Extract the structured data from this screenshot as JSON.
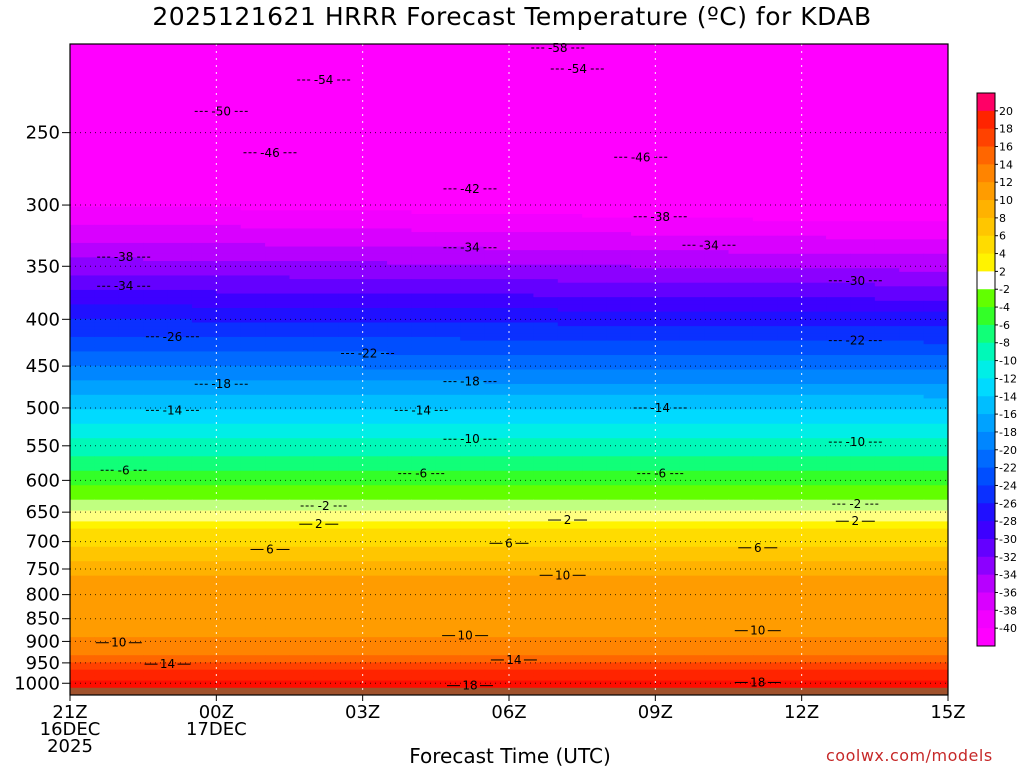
{
  "chart_data": {
    "type": "heatmap",
    "title": "2025121621 HRRR Forecast Temperature (ºC) for KDAB",
    "xlabel": "Forecast Time (UTC)",
    "ylabel": "",
    "credit": "coolwx.com/models",
    "x_ticks": [
      {
        "hour": 0,
        "lines": [
          "21Z",
          "16DEC",
          "2025"
        ]
      },
      {
        "hour": 3,
        "lines": [
          "00Z",
          "17DEC"
        ]
      },
      {
        "hour": 6,
        "lines": [
          "03Z"
        ]
      },
      {
        "hour": 9,
        "lines": [
          "06Z"
        ]
      },
      {
        "hour": 12,
        "lines": [
          "09Z"
        ]
      },
      {
        "hour": 15,
        "lines": [
          "12Z"
        ]
      },
      {
        "hour": 18,
        "lines": [
          "15Z"
        ]
      }
    ],
    "xlim": [
      0,
      18
    ],
    "y_ticks": [
      250,
      300,
      350,
      400,
      450,
      500,
      550,
      600,
      650,
      700,
      750,
      800,
      850,
      900,
      950,
      1000
    ],
    "ylim": [
      1030,
      200
    ],
    "y_scale": "log",
    "colorbar": {
      "labels": [
        20,
        18,
        16,
        14,
        12,
        10,
        8,
        6,
        4,
        2,
        -2,
        -4,
        -6,
        -8,
        -10,
        -12,
        -14,
        -16,
        -18,
        -20,
        -22,
        -24,
        -26,
        -28,
        -30,
        -32,
        -34,
        -36,
        -38,
        -40
      ]
    },
    "contour_labels": [
      {
        "value": "-58",
        "hour": 10.0,
        "p": 202
      },
      {
        "value": "-54",
        "hour": 5.2,
        "p": 219
      },
      {
        "value": "-54",
        "hour": 10.4,
        "p": 213
      },
      {
        "value": "-50",
        "hour": 3.1,
        "p": 237
      },
      {
        "value": "-46",
        "hour": 4.1,
        "p": 263
      },
      {
        "value": "-46",
        "hour": 11.7,
        "p": 266
      },
      {
        "value": "-42",
        "hour": 8.2,
        "p": 288
      },
      {
        "value": "-38",
        "hour": 1.1,
        "p": 342
      },
      {
        "value": "-38",
        "hour": 12.1,
        "p": 309
      },
      {
        "value": "-34",
        "hour": 1.1,
        "p": 368
      },
      {
        "value": "-34",
        "hour": 8.2,
        "p": 334
      },
      {
        "value": "-34",
        "hour": 13.1,
        "p": 332
      },
      {
        "value": "-30",
        "hour": 16.1,
        "p": 363
      },
      {
        "value": "-26",
        "hour": 2.1,
        "p": 418
      },
      {
        "value": "-22",
        "hour": 6.1,
        "p": 436
      },
      {
        "value": "-22",
        "hour": 16.1,
        "p": 422
      },
      {
        "value": "-18",
        "hour": 3.1,
        "p": 471
      },
      {
        "value": "-18",
        "hour": 8.2,
        "p": 468
      },
      {
        "value": "-14",
        "hour": 2.1,
        "p": 503
      },
      {
        "value": "-14",
        "hour": 7.2,
        "p": 503
      },
      {
        "value": "-14",
        "hour": 12.1,
        "p": 500
      },
      {
        "value": "-10",
        "hour": 8.2,
        "p": 541
      },
      {
        "value": "-10",
        "hour": 16.1,
        "p": 545
      },
      {
        "value": "-6",
        "hour": 1.1,
        "p": 585
      },
      {
        "value": "-6",
        "hour": 7.2,
        "p": 590
      },
      {
        "value": "-6",
        "hour": 12.1,
        "p": 590
      },
      {
        "value": "-2",
        "hour": 5.2,
        "p": 640
      },
      {
        "value": "-2",
        "hour": 16.1,
        "p": 637
      },
      {
        "value": "2",
        "hour": 5.1,
        "p": 670
      },
      {
        "value": "2",
        "hour": 10.2,
        "p": 663
      },
      {
        "value": "2",
        "hour": 16.1,
        "p": 665
      },
      {
        "value": "6",
        "hour": 4.1,
        "p": 714
      },
      {
        "value": "6",
        "hour": 9.0,
        "p": 703
      },
      {
        "value": "6",
        "hour": 14.1,
        "p": 711
      },
      {
        "value": "10",
        "hour": 10.1,
        "p": 762
      },
      {
        "value": "10",
        "hour": 1.0,
        "p": 903
      },
      {
        "value": "10",
        "hour": 8.1,
        "p": 887
      },
      {
        "value": "10",
        "hour": 14.1,
        "p": 876
      },
      {
        "value": "14",
        "hour": 2.0,
        "p": 953
      },
      {
        "value": "14",
        "hour": 9.1,
        "p": 943
      },
      {
        "value": "18",
        "hour": 8.2,
        "p": 1006
      },
      {
        "value": "18",
        "hour": 14.1,
        "p": 998
      }
    ]
  }
}
